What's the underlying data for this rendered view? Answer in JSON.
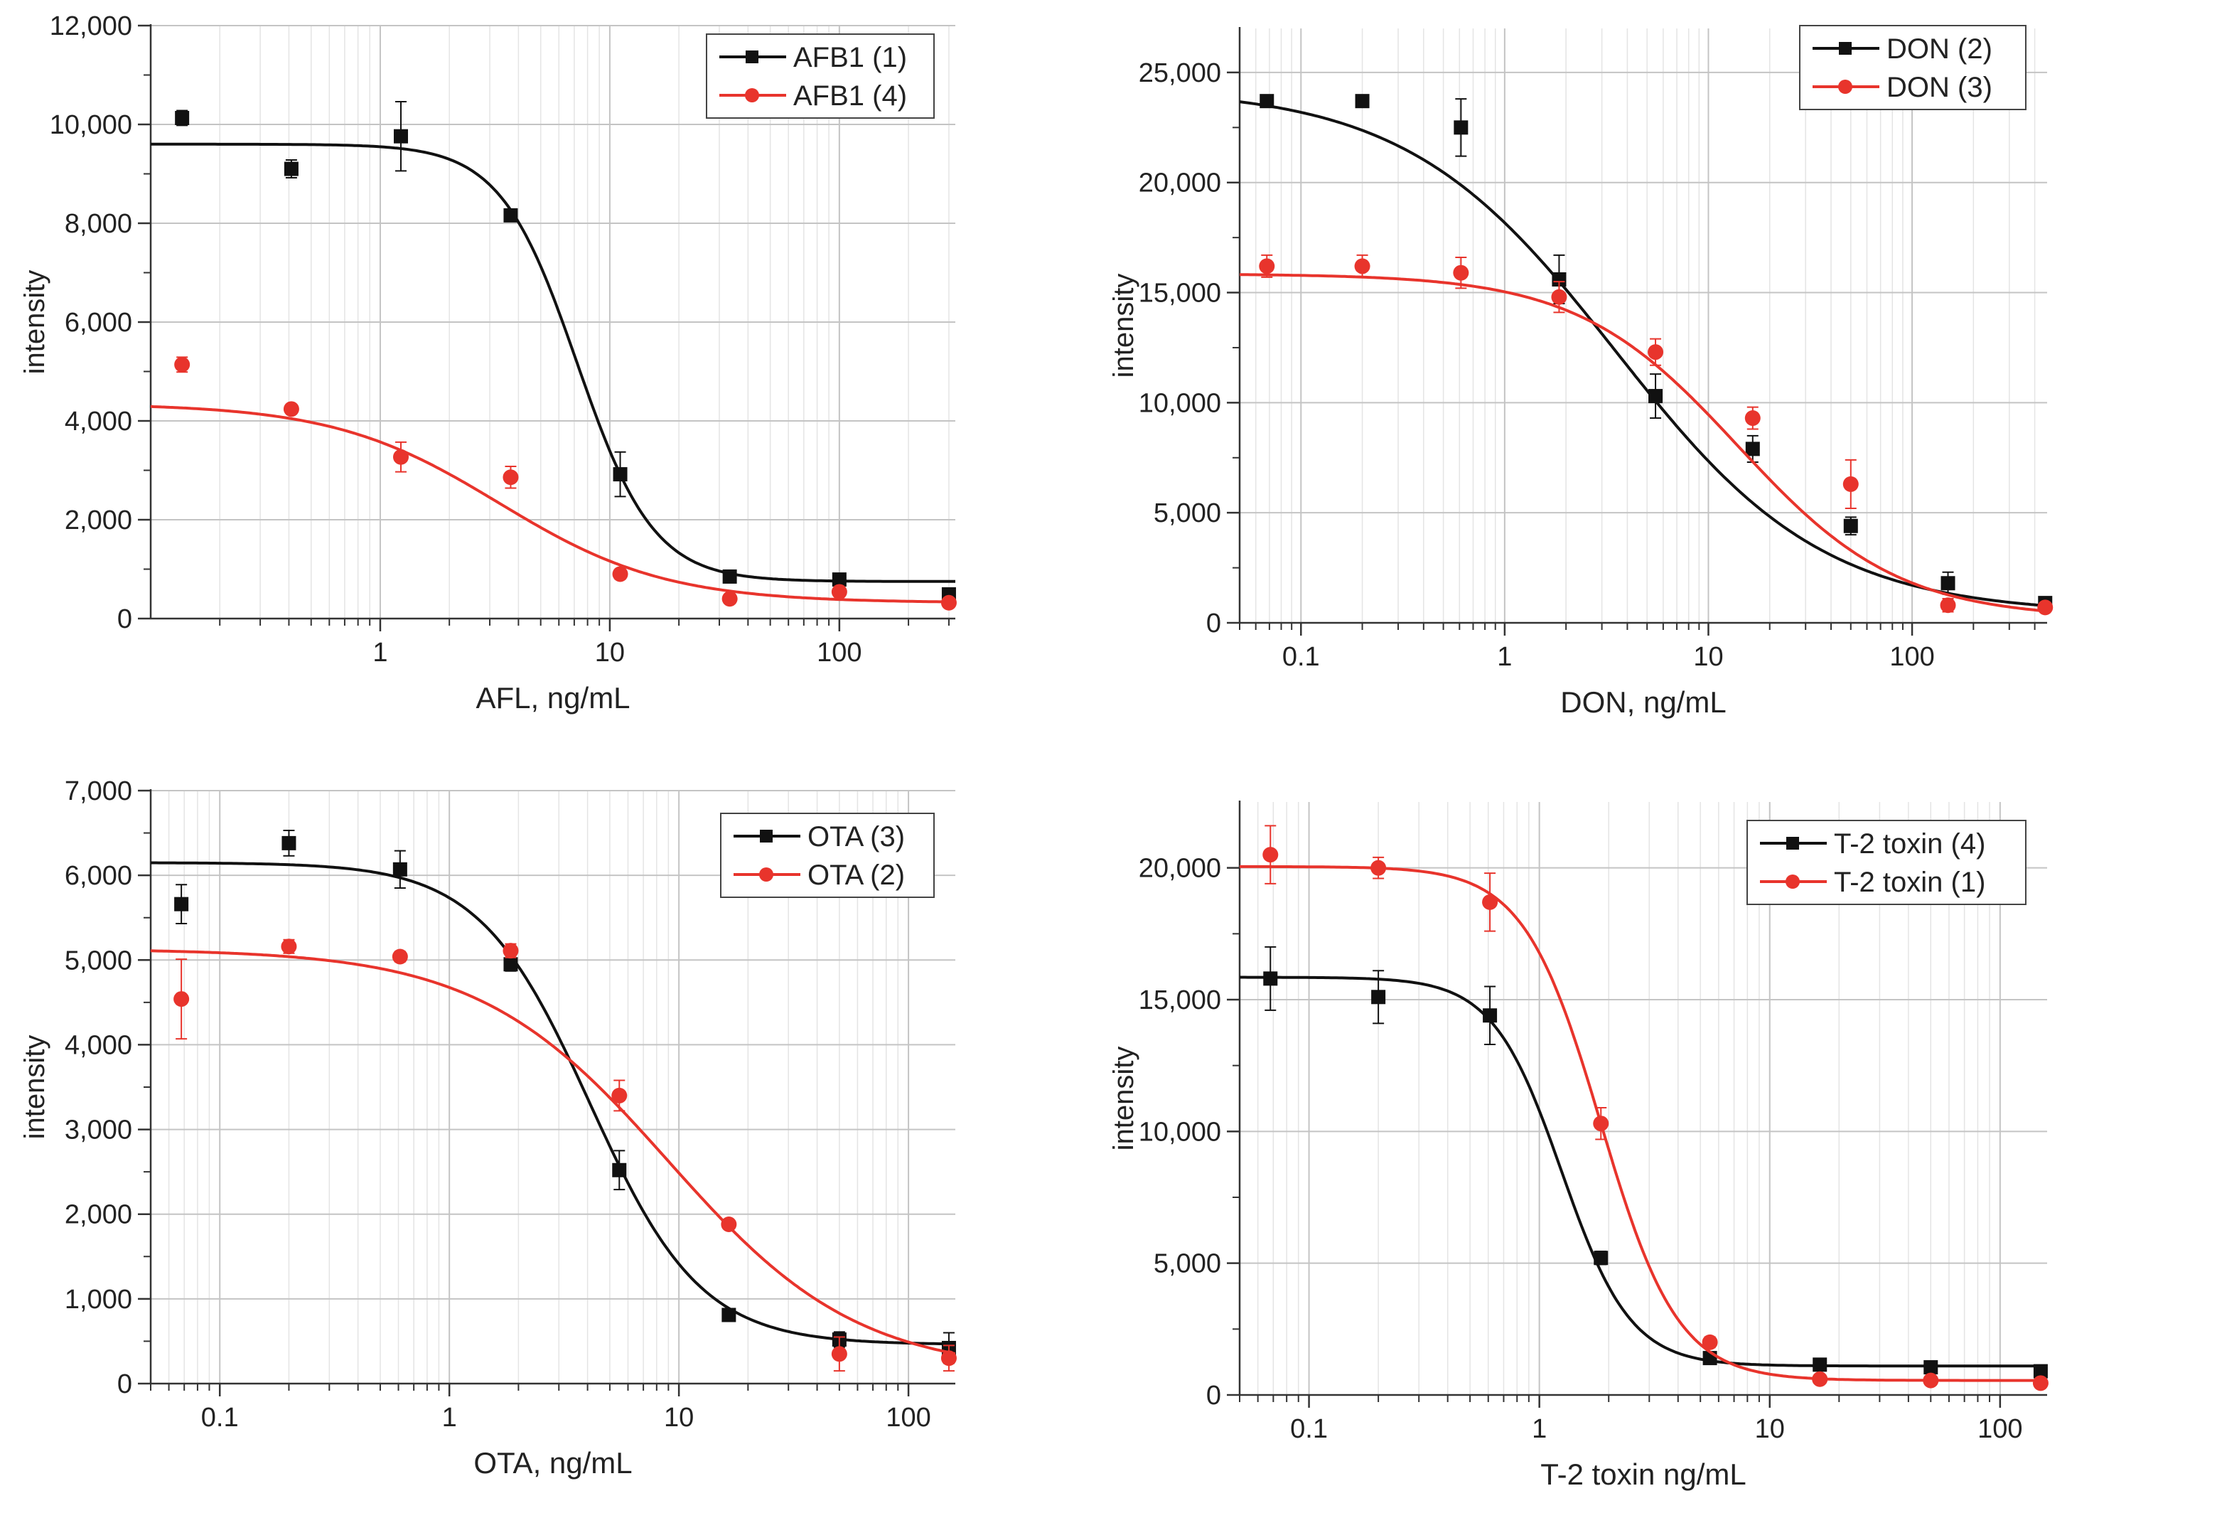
{
  "chart_data": [
    {
      "type": "scatter",
      "xlabel": "AFL, ng/mL",
      "ylabel": "intensity",
      "xscale": "log",
      "xlim": [
        0.1,
        320
      ],
      "ylim": [
        0,
        12000
      ],
      "xticks": [
        1,
        10,
        100
      ],
      "xtick_labels": [
        "1",
        "10",
        "100"
      ],
      "yticks": [
        0,
        2000,
        4000,
        6000,
        8000,
        10000,
        12000
      ],
      "ytick_labels": [
        "0",
        "2,000",
        "4,000",
        "6,000",
        "8,000",
        "10,000",
        "12,000"
      ],
      "legend_position": "top-right",
      "series": [
        {
          "name": "AFB1 (1)",
          "color": "#111111",
          "marker": "square",
          "x": [
            0.137,
            0.41,
            1.23,
            3.7,
            11.1,
            33.3,
            100,
            300
          ],
          "y": [
            10130,
            9100,
            9760,
            8160,
            2920,
            850,
            790,
            490
          ],
          "err": [
            150,
            180,
            700,
            80,
            450,
            60,
            60,
            60
          ],
          "fit": {
            "top": 9600,
            "bottom": 750,
            "ec50": 7.2,
            "hill": 2.6
          }
        },
        {
          "name": "AFB1 (4)",
          "color": "#e8342c",
          "marker": "circle",
          "x": [
            0.137,
            0.41,
            1.23,
            3.7,
            11.1,
            33.3,
            100,
            300
          ],
          "y": [
            5140,
            4240,
            3270,
            2860,
            900,
            400,
            540,
            320
          ],
          "err": [
            150,
            60,
            300,
            220,
            100,
            60,
            40,
            60
          ],
          "fit": {
            "top": 4350,
            "bottom": 320,
            "ec50": 3.3,
            "hill": 1.2
          }
        }
      ]
    },
    {
      "type": "scatter",
      "xlabel": "DON, ng/mL",
      "ylabel": "intensity",
      "xscale": "log",
      "xlim": [
        0.05,
        460
      ],
      "ylim": [
        0,
        27000
      ],
      "xticks": [
        0.1,
        1,
        10,
        100
      ],
      "xtick_labels": [
        "0.1",
        "1",
        "10",
        "100"
      ],
      "yticks": [
        0,
        5000,
        10000,
        15000,
        20000,
        25000
      ],
      "ytick_labels": [
        "0",
        "5,000",
        "10,000",
        "15,000",
        "20,000",
        "25,000"
      ],
      "legend_position": "top-right",
      "series": [
        {
          "name": "DON (2)",
          "color": "#111111",
          "marker": "square",
          "x": [
            0.068,
            0.2,
            0.61,
            1.85,
            5.5,
            16.5,
            50,
            150,
            450
          ],
          "y": [
            23700,
            23700,
            22500,
            15600,
            10300,
            7900,
            4400,
            1800,
            900
          ],
          "err": [
            200,
            200,
            1300,
            1100,
            1000,
            600,
            400,
            500,
            200
          ],
          "fit": {
            "top": 24300,
            "bottom": 400,
            "ec50": 3.5,
            "hill": 0.85
          }
        },
        {
          "name": "DON (3)",
          "color": "#e8342c",
          "marker": "circle",
          "x": [
            0.068,
            0.2,
            0.61,
            1.85,
            5.5,
            16.5,
            50,
            150,
            450
          ],
          "y": [
            16200,
            16200,
            15900,
            14800,
            12300,
            9300,
            6300,
            800,
            700
          ],
          "err": [
            500,
            500,
            700,
            700,
            600,
            500,
            1100,
            300,
            200
          ],
          "fit": {
            "top": 15850,
            "bottom": 200,
            "ec50": 14,
            "hill": 1.1
          }
        }
      ]
    },
    {
      "type": "scatter",
      "xlabel": "OTA, ng/mL",
      "ylabel": "intensity",
      "xscale": "log",
      "xlim": [
        0.05,
        160
      ],
      "ylim": [
        0,
        7000
      ],
      "xticks": [
        0.1,
        1,
        10,
        100
      ],
      "xtick_labels": [
        "0.1",
        "1",
        "10",
        "100"
      ],
      "yticks": [
        0,
        1000,
        2000,
        3000,
        4000,
        5000,
        6000,
        7000
      ],
      "ytick_labels": [
        "0",
        "1,000",
        "2,000",
        "3,000",
        "4,000",
        "5,000",
        "6,000",
        "7,000"
      ],
      "legend_position": "top-right",
      "series": [
        {
          "name": "OTA (3)",
          "color": "#111111",
          "marker": "square",
          "x": [
            0.068,
            0.2,
            0.61,
            1.85,
            5.5,
            16.5,
            50,
            150
          ],
          "y": [
            5660,
            6380,
            6070,
            4950,
            2520,
            810,
            520,
            420
          ],
          "err": [
            230,
            150,
            220,
            80,
            230,
            60,
            90,
            180
          ],
          "fit": {
            "top": 6150,
            "bottom": 460,
            "ec50": 4.1,
            "hill": 1.8
          }
        },
        {
          "name": "OTA (2)",
          "color": "#e8342c",
          "marker": "circle",
          "x": [
            0.068,
            0.2,
            0.61,
            1.85,
            5.5,
            16.5,
            50,
            150
          ],
          "y": [
            4540,
            5160,
            5040,
            5110,
            3400,
            1880,
            350,
            300
          ],
          "err": [
            470,
            80,
            60,
            80,
            180,
            50,
            200,
            150
          ],
          "fit": {
            "top": 5130,
            "bottom": 120,
            "ec50": 9.0,
            "hill": 1.05
          }
        }
      ]
    },
    {
      "type": "scatter",
      "xlabel": "T-2 toxin ng/mL",
      "ylabel": "intensity",
      "xscale": "log",
      "xlim": [
        0.05,
        160
      ],
      "ylim": [
        0,
        22500
      ],
      "xticks": [
        0.1,
        1,
        10,
        100
      ],
      "xtick_labels": [
        "0.1",
        "1",
        "10",
        "100"
      ],
      "yticks": [
        0,
        5000,
        10000,
        15000,
        20000
      ],
      "ytick_labels": [
        "0",
        "5,000",
        "10,000",
        "15,000",
        "20,000"
      ],
      "legend_position": "top-right",
      "series": [
        {
          "name": "T-2 toxin (4)",
          "color": "#111111",
          "marker": "square",
          "x": [
            0.068,
            0.2,
            0.61,
            1.85,
            5.5,
            16.5,
            50,
            150
          ],
          "y": [
            15800,
            15100,
            14400,
            5200,
            1400,
            1150,
            1050,
            900
          ],
          "err": [
            1200,
            1000,
            1100,
            250,
            150,
            100,
            100,
            100
          ],
          "fit": {
            "top": 15850,
            "bottom": 1100,
            "ec50": 1.25,
            "hill": 2.9
          }
        },
        {
          "name": "T-2 toxin (1)",
          "color": "#e8342c",
          "marker": "circle",
          "x": [
            0.068,
            0.2,
            0.61,
            1.85,
            5.5,
            16.5,
            50,
            150
          ],
          "y": [
            20500,
            20000,
            18700,
            10300,
            2000,
            600,
            550,
            450
          ],
          "err": [
            1100,
            400,
            1100,
            600,
            200,
            100,
            100,
            100
          ],
          "fit": {
            "top": 20050,
            "bottom": 550,
            "ec50": 1.85,
            "hill": 2.6
          }
        }
      ]
    }
  ]
}
